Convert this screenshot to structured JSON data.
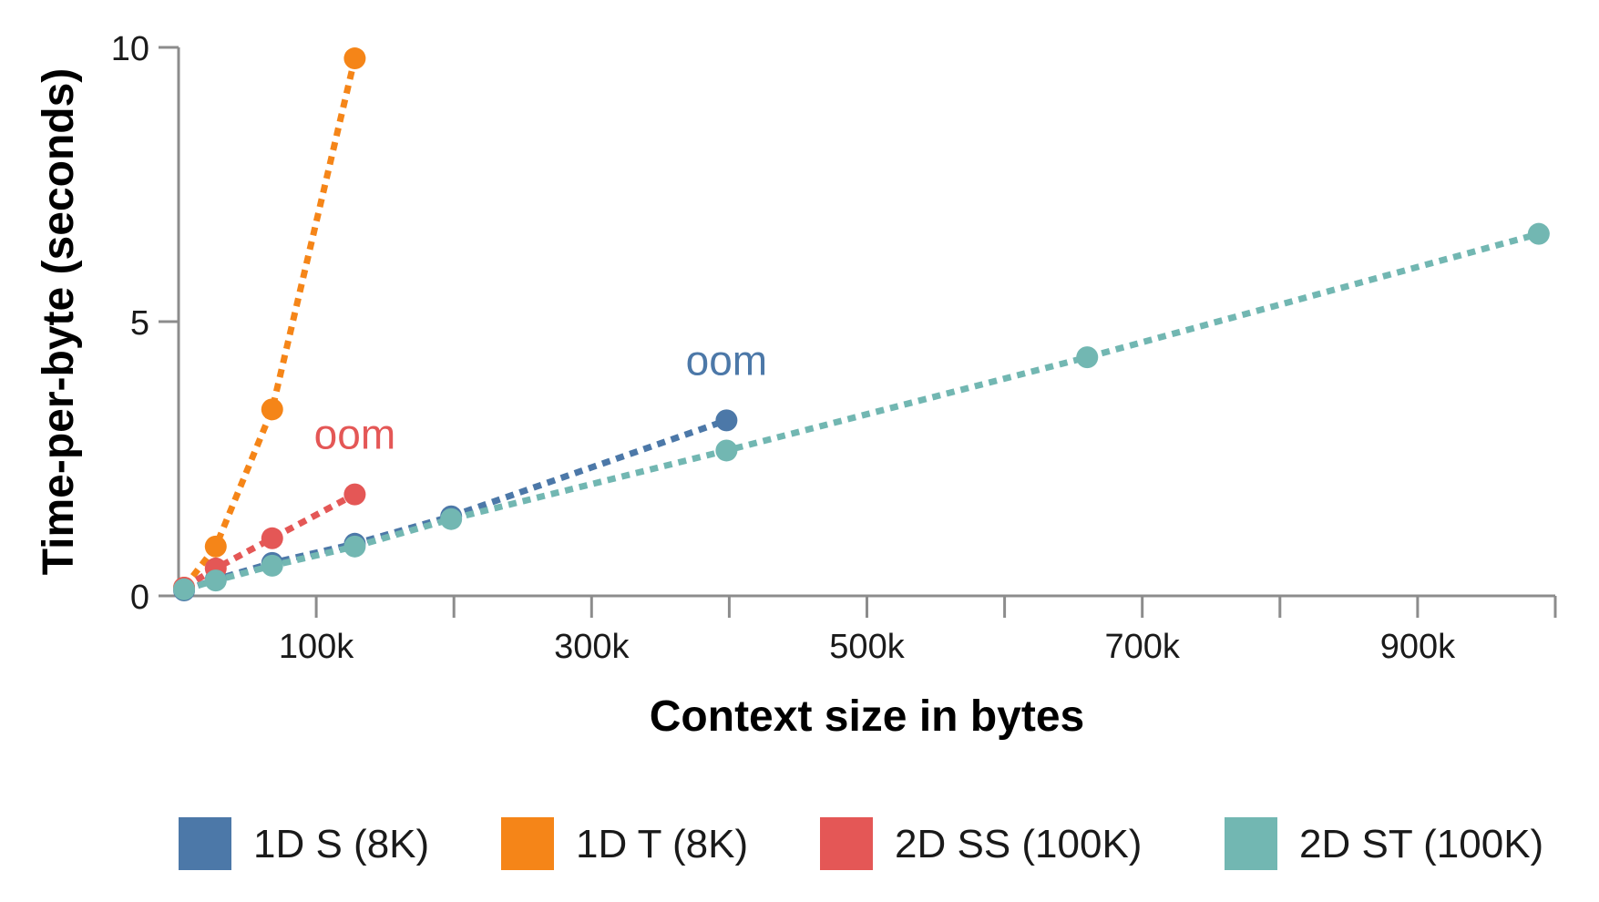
{
  "chart_data": {
    "type": "line",
    "title": "",
    "xlabel": "Context size in bytes",
    "ylabel": "Time-per-byte (seconds)",
    "xlim": [
      0,
      1000000
    ],
    "ylim": [
      0,
      10
    ],
    "x_ticks": [
      100000,
      200000,
      300000,
      400000,
      500000,
      600000,
      700000,
      800000,
      900000,
      1000000
    ],
    "x_tick_labels": [
      {
        "x": 100000,
        "label": "100k"
      },
      {
        "x": 300000,
        "label": "300k"
      },
      {
        "x": 500000,
        "label": "500k"
      },
      {
        "x": 700000,
        "label": "700k"
      },
      {
        "x": 900000,
        "label": "900k"
      }
    ],
    "y_ticks": [
      {
        "y": 0,
        "label": "0"
      },
      {
        "y": 5,
        "label": "5"
      },
      {
        "y": 10,
        "label": "10"
      }
    ],
    "grid": false,
    "legend_position": "bottom",
    "series": [
      {
        "name": "1D S (8K)",
        "color": "#4c78a8",
        "x": [
          4000,
          27000,
          68000,
          128000,
          198000,
          398000
        ],
        "y": [
          0.1,
          0.3,
          0.6,
          0.95,
          1.45,
          3.2
        ]
      },
      {
        "name": "1D T (8K)",
        "color": "#f58518",
        "x": [
          4000,
          27000,
          68000,
          128000
        ],
        "y": [
          0.15,
          0.9,
          3.4,
          9.8
        ]
      },
      {
        "name": "2D SS (100K)",
        "color": "#e45756",
        "x": [
          4000,
          27000,
          68000,
          128000
        ],
        "y": [
          0.15,
          0.5,
          1.05,
          1.85
        ]
      },
      {
        "name": "2D ST (100K)",
        "color": "#72b7b2",
        "x": [
          4000,
          27000,
          68000,
          128000,
          198000,
          398000,
          660000,
          988000
        ],
        "y": [
          0.12,
          0.28,
          0.55,
          0.9,
          1.4,
          2.65,
          4.35,
          6.6
        ]
      }
    ],
    "annotations": [
      {
        "text": "oom",
        "series": "2D SS (100K)",
        "x": 128000,
        "y": 1.85,
        "color": "#e45756"
      },
      {
        "text": "oom",
        "series": "1D S (8K)",
        "x": 398000,
        "y": 3.2,
        "color": "#4c78a8"
      }
    ]
  }
}
